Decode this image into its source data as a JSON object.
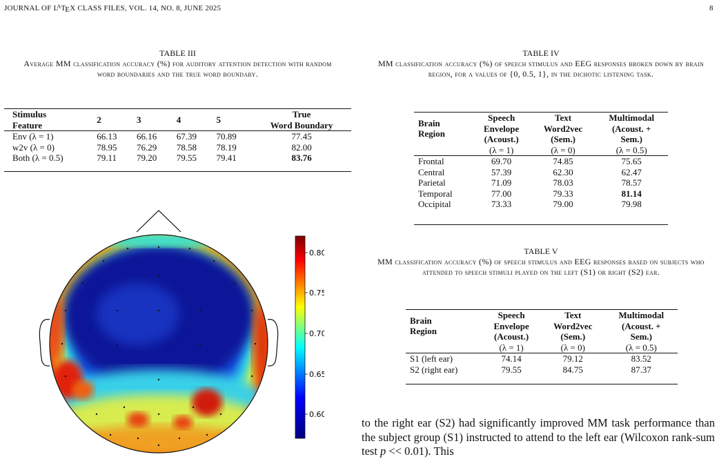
{
  "header": {
    "journal": "JOURNAL OF LATEX CLASS FILES, VOL. 14, NO. 8, JUNE 2025",
    "page": "8"
  },
  "table3": {
    "number": "TABLE III",
    "caption": "Average MM classification accuracy (%) for auditory attention detection with random word boundaries and the true word boundary.",
    "headers": [
      "Stimulus Feature",
      "2",
      "3",
      "4",
      "5",
      "True Word Boundary"
    ],
    "rows": [
      {
        "label": "Env (λ = 1)",
        "vals": [
          "66.13",
          "66.16",
          "67.39",
          "70.89",
          "77.45"
        ]
      },
      {
        "label": "w2v (λ = 0)",
        "vals": [
          "78.95",
          "76.29",
          "78.58",
          "78.19",
          "82.00"
        ]
      },
      {
        "label": "Both (λ = 0.5)",
        "vals": [
          "79.11",
          "79.20",
          "79.55",
          "79.41",
          "83.76"
        ]
      }
    ]
  },
  "table4": {
    "number": "TABLE IV",
    "caption": "MM classification accuracy (%) of speech stimulus and EEG responses broken down by brain region, for λ values of {0, 0.5, 1}, in the dichotic listening task.",
    "headers": [
      "Brain Region",
      "Speech Envelope (Acoust.)",
      "Text Word2vec (Sem.)",
      "Multimodal (Acoust. + Sem.)"
    ],
    "lambdas": [
      "(λ = 1)",
      "(λ = 0)",
      "(λ = 0.5)"
    ],
    "rows": [
      {
        "label": "Frontal",
        "vals": [
          "69.70",
          "74.85",
          "75.65"
        ]
      },
      {
        "label": "Central",
        "vals": [
          "57.39",
          "62.30",
          "62.47"
        ]
      },
      {
        "label": "Parietal",
        "vals": [
          "71.09",
          "78.03",
          "78.57"
        ]
      },
      {
        "label": "Temporal",
        "vals": [
          "77.00",
          "79.33",
          "81.14"
        ]
      },
      {
        "label": "Occipital",
        "vals": [
          "73.33",
          "79.00",
          "79.98"
        ]
      }
    ]
  },
  "table5": {
    "number": "TABLE V",
    "caption": "MM classification accuracy (%) of speech stimulus and EEG responses based on subjects who attended to speech stimuli played on the left (S1) or right (S2) ear.",
    "headers": [
      "Brain Region",
      "Speech Envelope (Acoust.)",
      "Text Word2vec (Sem.)",
      "Multimodal (Acoust. + Sem.)"
    ],
    "lambdas": [
      "(λ = 1)",
      "(λ = 0)",
      "(λ = 0.5)"
    ],
    "rows": [
      {
        "label": "S1 (left ear)",
        "vals": [
          "74.14",
          "79.12",
          "83.52"
        ]
      },
      {
        "label": "S2 (right ear)",
        "vals": [
          "79.55",
          "84.75",
          "87.37"
        ]
      }
    ]
  },
  "topomap": {
    "colorbar_ticks": [
      "0.80",
      "0.75",
      "0.70",
      "0.65",
      "0.60"
    ],
    "colors": [
      "#7f0000",
      "#ff0000",
      "#ffff00",
      "#00ffff",
      "#0000ff",
      "#00007f"
    ]
  },
  "body_text": "to the right ear (S2) had significantly improved MM task performance than the subject group (S1) instructed to attend to the left ear (Wilcoxon rank-sum test p << 0.01). This"
}
